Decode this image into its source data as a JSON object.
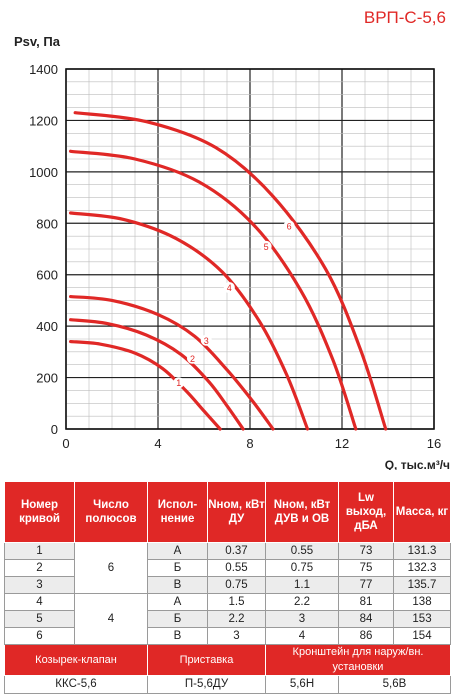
{
  "model_title": "ВРП-С-5,6",
  "chart_data": {
    "type": "line",
    "ylabel": "Psv, Па",
    "xlabel": "Q, тыс.м³/ч",
    "xlim": [
      0,
      16
    ],
    "ylim": [
      0,
      1400
    ],
    "xticks": [
      "0",
      "4",
      "8",
      "12",
      "16"
    ],
    "yticks": [
      "0",
      "200",
      "400",
      "600",
      "800",
      "1000",
      "1200",
      "1400"
    ],
    "grid": true,
    "line_color": "#e02826",
    "series": [
      {
        "name": "1",
        "x": [
          0.2,
          1.5,
          3.0,
          4.2,
          5.2,
          6.0,
          6.7
        ],
        "y": [
          340,
          330,
          295,
          235,
          150,
          70,
          0
        ],
        "label_at": [
          4.9,
          180
        ]
      },
      {
        "name": "2",
        "x": [
          0.2,
          1.8,
          3.5,
          5.0,
          6.2,
          7.0,
          7.7
        ],
        "y": [
          425,
          410,
          365,
          290,
          185,
          90,
          0
        ],
        "label_at": [
          5.5,
          275
        ]
      },
      {
        "name": "3",
        "x": [
          0.2,
          2.0,
          4.0,
          5.6,
          7.0,
          8.1,
          9.0
        ],
        "y": [
          515,
          500,
          445,
          360,
          230,
          110,
          0
        ],
        "label_at": [
          6.1,
          345
        ]
      },
      {
        "name": "4",
        "x": [
          0.2,
          2.5,
          4.8,
          6.8,
          8.4,
          9.6,
          10.5
        ],
        "y": [
          840,
          815,
          740,
          610,
          420,
          210,
          0
        ],
        "label_at": [
          7.1,
          550
        ]
      },
      {
        "name": "5",
        "x": [
          0.2,
          3.0,
          5.8,
          8.2,
          10.2,
          11.6,
          12.6
        ],
        "y": [
          1080,
          1050,
          960,
          790,
          540,
          270,
          0
        ],
        "label_at": [
          8.7,
          710
        ]
      },
      {
        "name": "6",
        "x": [
          0.4,
          3.5,
          6.5,
          9.0,
          11.3,
          12.8,
          13.9
        ],
        "y": [
          1230,
          1195,
          1095,
          905,
          620,
          310,
          0
        ],
        "label_at": [
          9.7,
          790
        ]
      }
    ]
  },
  "table": {
    "headers": [
      "Номер кривой",
      "Число полюсов",
      "Испол-нение",
      "Nном, кВт ДУ",
      "Nном, кВт ДУВ и ОВ",
      "Lw выход, дБА",
      "Масса, кг"
    ],
    "rows": [
      {
        "num": "1",
        "exec": "А",
        "n_du": "0.37",
        "n_duv": "0.55",
        "lw": "73",
        "mass": "131.3"
      },
      {
        "num": "2",
        "exec": "Б",
        "n_du": "0.55",
        "n_duv": "0.75",
        "lw": "75",
        "mass": "132.3"
      },
      {
        "num": "3",
        "exec": "В",
        "n_du": "0.75",
        "n_duv": "1.1",
        "lw": "77",
        "mass": "135.7"
      },
      {
        "num": "4",
        "exec": "А",
        "n_du": "1.5",
        "n_duv": "2.2",
        "lw": "81",
        "mass": "138"
      },
      {
        "num": "5",
        "exec": "Б",
        "n_du": "2.2",
        "n_duv": "3",
        "lw": "84",
        "mass": "153"
      },
      {
        "num": "6",
        "exec": "В",
        "n_du": "3",
        "n_duv": "4",
        "lw": "86",
        "mass": "154"
      }
    ],
    "poles": [
      "6",
      "4"
    ],
    "accessories": {
      "headers": [
        "Козырек-клапан",
        "Приставка",
        "Кронштейн для наруж/вн. установки"
      ],
      "values": [
        "ККС-5,6",
        "П-5,6ДУ",
        "5,6Н",
        "5,6В"
      ]
    }
  }
}
